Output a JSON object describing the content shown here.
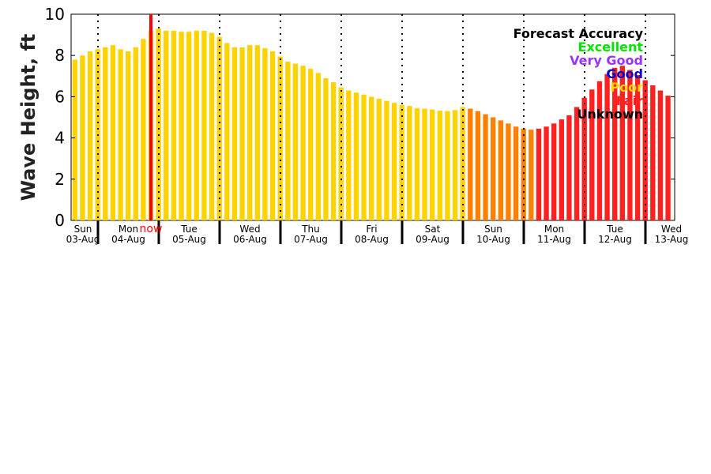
{
  "chart_data": {
    "type": "bar",
    "ylabel": "Wave Height, ft",
    "ylim": [
      0,
      10
    ],
    "yticks": [
      0,
      2,
      4,
      6,
      8,
      10
    ],
    "days": [
      {
        "weekday": "Sun",
        "date": "03-Aug"
      },
      {
        "weekday": "Mon",
        "date": "04-Aug"
      },
      {
        "weekday": "Tue",
        "date": "05-Aug"
      },
      {
        "weekday": "Wed",
        "date": "06-Aug"
      },
      {
        "weekday": "Thu",
        "date": "07-Aug"
      },
      {
        "weekday": "Fri",
        "date": "08-Aug"
      },
      {
        "weekday": "Sat",
        "date": "09-Aug"
      },
      {
        "weekday": "Sun",
        "date": "10-Aug"
      },
      {
        "weekday": "Mon",
        "date": "11-Aug"
      },
      {
        "weekday": "Tue",
        "date": "12-Aug"
      },
      {
        "weekday": "Wed",
        "date": "13-Aug"
      }
    ],
    "bars_per_day": 8,
    "now_label": "now",
    "now_day_fraction": 1.87,
    "values": [
      7.8,
      8.0,
      8.2,
      8.3,
      8.4,
      8.5,
      8.3,
      8.2,
      8.4,
      8.8,
      9.2,
      9.3,
      9.2,
      9.2,
      9.15,
      9.15,
      9.2,
      9.2,
      9.1,
      8.9,
      8.6,
      8.4,
      8.4,
      8.5,
      8.5,
      8.35,
      8.2,
      7.95,
      7.7,
      7.6,
      7.5,
      7.35,
      7.15,
      6.9,
      6.7,
      6.45,
      6.3,
      6.2,
      6.1,
      6.0,
      5.9,
      5.8,
      5.7,
      5.6,
      5.55,
      5.45,
      5.42,
      5.38,
      5.32,
      5.3,
      5.35,
      5.5,
      5.42,
      5.3,
      5.15,
      5.0,
      4.85,
      4.7,
      4.55,
      4.45,
      4.4,
      4.45,
      4.55,
      4.7,
      4.9,
      5.1,
      5.5,
      5.95,
      6.35,
      6.75,
      7.1,
      7.4,
      7.5,
      7.3,
      7.05,
      6.8,
      6.55,
      6.3,
      6.05
    ],
    "accuracy": [
      "poor",
      "poor",
      "poor",
      "poor",
      "poor",
      "poor",
      "poor",
      "poor",
      "poor",
      "poor",
      "poor",
      "poor",
      "poor",
      "poor",
      "poor",
      "poor",
      "poor",
      "poor",
      "poor",
      "poor",
      "poor",
      "poor",
      "poor",
      "poor",
      "poor",
      "poor",
      "poor",
      "poor",
      "poor",
      "poor",
      "poor",
      "poor",
      "poor",
      "poor",
      "poor",
      "poor",
      "poor",
      "poor",
      "poor",
      "poor",
      "poor",
      "poor",
      "poor",
      "poor",
      "poor",
      "poor",
      "poor",
      "poor",
      "poor",
      "poor",
      "poor",
      "poor",
      "fair",
      "fair",
      "fair",
      "fair",
      "fair",
      "fair",
      "fair",
      "fair",
      "fair",
      "fair",
      "fair",
      "fair",
      "fair",
      "fair",
      "fair",
      "fair",
      "fair",
      "fair",
      "fair",
      "fair",
      "fair",
      "fair",
      "fair",
      "fair",
      "fair",
      "fair",
      "fair"
    ],
    "accuracy_colors": {
      "poor": "#ffd200",
      "fair": "#ff2020",
      "transition": "#ff7f00"
    },
    "legend": {
      "title": "Forecast Accuracy",
      "placement": "top-right",
      "entries": [
        {
          "label": "Excellent",
          "color": "#00e600"
        },
        {
          "label": "Very Good",
          "color": "#9933ff"
        },
        {
          "label": "Good",
          "color": "#0000cc"
        },
        {
          "label": "Poor",
          "color": "#ffd200"
        },
        {
          "label": "Fair",
          "color": "#ff2020"
        },
        {
          "label": "Unknown",
          "color": "#000000"
        }
      ]
    },
    "colors": {
      "now_line": "#ff0000",
      "axis": "#000000",
      "grid": "#000000"
    }
  }
}
